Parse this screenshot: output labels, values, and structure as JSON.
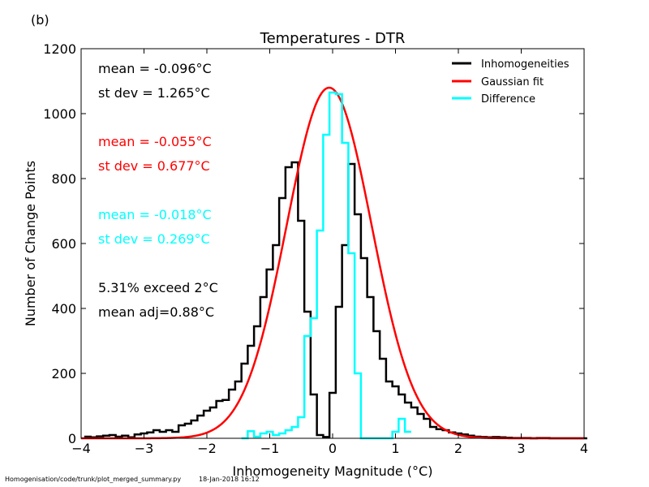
{
  "panel_label": "(b)",
  "footer": {
    "path": "Homogenisation/code/trunk/plot_merged_summary.py",
    "timestamp": "18-Jan-2018 16:12"
  },
  "stats": [
    {
      "text": "mean = -0.096°C",
      "color": "#000000"
    },
    {
      "text": "st dev =  1.265°C",
      "color": "#000000"
    },
    {
      "text": "mean = -0.055°C",
      "color": "#ff0000"
    },
    {
      "text": "st dev =  0.677°C",
      "color": "#ff0000"
    },
    {
      "text": "mean = -0.018°C",
      "color": "#00ffff"
    },
    {
      "text": "st dev =  0.269°C",
      "color": "#00ffff"
    },
    {
      "text": "5.31% exceed 2°C",
      "color": "#000000"
    },
    {
      "text": "mean adj=0.88°C",
      "color": "#000000"
    }
  ],
  "chart_data": {
    "type": "line",
    "title": "Temperatures - DTR",
    "xlabel": "Inhomogeneity Magnitude (°C)",
    "ylabel": "Number of Change Points",
    "xlim": [
      -4,
      4
    ],
    "ylim": [
      0,
      1200
    ],
    "xticks": [
      -4,
      -3,
      -2,
      -1,
      0,
      1,
      2,
      3,
      4
    ],
    "xtick_labels": [
      "−4",
      "−3",
      "−2",
      "−1",
      "0",
      "1",
      "2",
      "3",
      "4"
    ],
    "yticks": [
      0,
      200,
      400,
      600,
      800,
      1000,
      1200
    ],
    "ytick_labels": [
      "0",
      "200",
      "400",
      "600",
      "800",
      "1000",
      "1200"
    ],
    "grid": false,
    "legend_position": "top-right",
    "bin_width": 0.1,
    "series": [
      {
        "name": "Inhomogeneities",
        "style": "step",
        "color": "#000000",
        "x": [
          -3.9,
          -3.8,
          -3.7,
          -3.6,
          -3.5,
          -3.4,
          -3.3,
          -3.2,
          -3.1,
          -3.0,
          -2.9,
          -2.8,
          -2.7,
          -2.6,
          -2.5,
          -2.4,
          -2.3,
          -2.2,
          -2.1,
          -2.0,
          -1.9,
          -1.8,
          -1.7,
          -1.6,
          -1.5,
          -1.4,
          -1.3,
          -1.2,
          -1.1,
          -1.0,
          -0.9,
          -0.8,
          -0.7,
          -0.6,
          -0.5,
          -0.4,
          -0.3,
          -0.2,
          -0.1,
          0.0,
          0.1,
          0.2,
          0.3,
          0.4,
          0.5,
          0.6,
          0.7,
          0.8,
          0.9,
          1.0,
          1.1,
          1.2,
          1.3,
          1.4,
          1.5,
          1.6,
          1.7,
          1.8,
          1.9,
          2.0,
          2.1,
          2.2,
          2.3,
          2.4,
          2.5,
          2.6,
          2.7,
          2.8,
          2.9,
          3.0,
          3.1,
          3.2,
          3.3,
          3.4,
          3.5,
          3.6,
          3.7,
          3.8,
          3.9,
          4.0
        ],
        "y": [
          5,
          3,
          6,
          8,
          10,
          5,
          8,
          3,
          12,
          15,
          18,
          25,
          20,
          25,
          20,
          40,
          45,
          55,
          70,
          85,
          95,
          115,
          118,
          150,
          175,
          230,
          285,
          345,
          435,
          520,
          595,
          740,
          835,
          850,
          670,
          390,
          135,
          10,
          4,
          140,
          405,
          595,
          845,
          690,
          555,
          435,
          330,
          245,
          175,
          160,
          135,
          110,
          95,
          75,
          60,
          35,
          28,
          25,
          18,
          15,
          12,
          8,
          5,
          4,
          3,
          4,
          3,
          2,
          1,
          1,
          1,
          0,
          1,
          1,
          0,
          0,
          0,
          0,
          0,
          0
        ]
      },
      {
        "name": "Gaussian fit",
        "style": "line",
        "color": "#ff0000",
        "mean": -0.055,
        "amplitude": 1080,
        "sigma": 0.677
      },
      {
        "name": "Difference",
        "style": "step",
        "color": "#00ffff",
        "x": [
          -1.4,
          -1.3,
          -1.2,
          -1.1,
          -1.0,
          -0.9,
          -0.8,
          -0.7,
          -0.6,
          -0.5,
          -0.4,
          -0.3,
          -0.2,
          -0.1,
          0.0,
          0.1,
          0.2,
          0.3,
          0.4,
          0.5,
          0.6,
          0.7,
          0.8,
          0.9,
          1.0,
          1.1,
          1.2
        ],
        "y": [
          0,
          22,
          5,
          15,
          20,
          10,
          15,
          25,
          35,
          65,
          315,
          370,
          640,
          935,
          1065,
          1060,
          910,
          570,
          200,
          0,
          0,
          0,
          0,
          0,
          20,
          60,
          20
        ]
      }
    ]
  }
}
